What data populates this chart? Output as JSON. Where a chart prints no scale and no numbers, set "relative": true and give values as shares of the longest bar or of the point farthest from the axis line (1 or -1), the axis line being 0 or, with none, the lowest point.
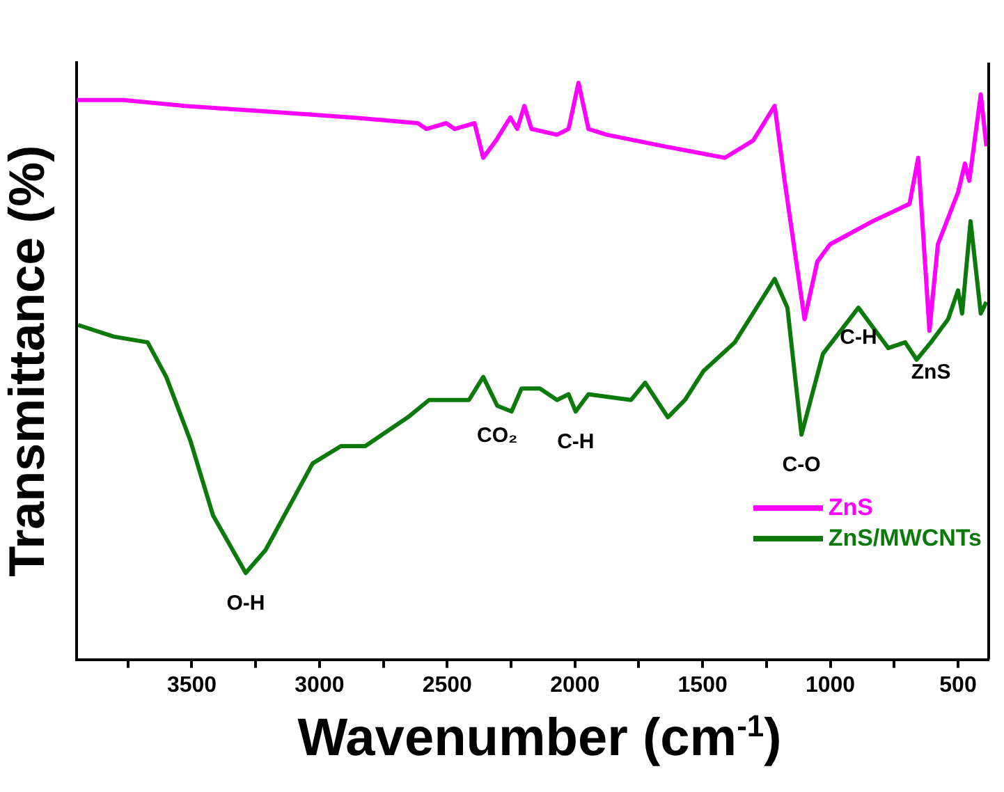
{
  "chart_data": {
    "type": "line",
    "relative": true,
    "xlabel": "Wavenumber (cm$^{-1}$)",
    "ylabel": "Transmittance (%)",
    "xlim": [
      3950,
      380
    ],
    "xticks": [
      {
        "value": 3750,
        "label": null
      },
      3500,
      {
        "value": 3250,
        "label": null
      },
      3000,
      {
        "value": 2750,
        "label": null
      },
      2500,
      {
        "value": 2250,
        "label": null
      },
      2000,
      {
        "value": 1750,
        "label": null
      },
      1500,
      {
        "value": 1250,
        "label": null
      },
      1000,
      {
        "value": 750,
        "label": null
      },
      500
    ],
    "tick_labels": "x",
    "grid": false,
    "legend": "bottom right",
    "marker": "none",
    "line_style": "solid",
    "series": [
      {
        "name": "ZnS",
        "color": "#ff00ff",
        "x": [
          3950,
          3767,
          3528,
          3194,
          2877,
          2615,
          2582,
          2504,
          2471,
          2393,
          2359,
          2309,
          2253,
          2226,
          2198,
          2170,
          2070,
          2025,
          1986,
          1947,
          1875,
          1652,
          1413,
          1302,
          1218,
          1179,
          1101,
          1051,
          1001,
          834,
          690,
          656,
          612,
          579,
          500,
          473,
          456,
          411,
          389
        ],
        "values": [
          0.97,
          0.97,
          0.96,
          0.95,
          0.94,
          0.93,
          0.92,
          0.93,
          0.92,
          0.93,
          0.87,
          0.9,
          0.94,
          0.92,
          0.96,
          0.92,
          0.91,
          0.92,
          1,
          0.92,
          0.91,
          0.89,
          0.87,
          0.9,
          0.96,
          0.83,
          0.59,
          0.69,
          0.72,
          0.76,
          0.79,
          0.87,
          0.57,
          0.72,
          0.81,
          0.86,
          0.83,
          0.98,
          0.89
        ]
      },
      {
        "name": "ZnS/MWCNTs",
        "color": "#0b7a0b",
        "x": [
          3945,
          3806,
          3673,
          3600,
          3506,
          3417,
          3289,
          3211,
          3027,
          2916,
          2821,
          2654,
          2571,
          2415,
          2359,
          2304,
          2248,
          2209,
          2137,
          2070,
          2025,
          1997,
          1947,
          1780,
          1725,
          1636,
          1569,
          1497,
          1374,
          1218,
          1168,
          1113,
          1029,
          890,
          773,
          707,
          662,
          606,
          539,
          500,
          484,
          451,
          411,
          389
        ],
        "values": [
          0.58,
          0.56,
          0.55,
          0.49,
          0.38,
          0.25,
          0.15,
          0.19,
          0.34,
          0.37,
          0.37,
          0.42,
          0.45,
          0.45,
          0.49,
          0.44,
          0.43,
          0.47,
          0.47,
          0.45,
          0.46,
          0.43,
          0.46,
          0.45,
          0.48,
          0.42,
          0.45,
          0.5,
          0.55,
          0.66,
          0.61,
          0.39,
          0.53,
          0.61,
          0.54,
          0.55,
          0.52,
          0.55,
          0.59,
          0.64,
          0.6,
          0.76,
          0.6,
          0.62
        ]
      }
    ],
    "annotations": [
      {
        "text": "O-H",
        "x": 3289,
        "y": 0.15
      },
      {
        "text": "CO₂",
        "x": 2304,
        "y": 0.44
      },
      {
        "text": "C-H",
        "x": 1997,
        "y": 0.43
      },
      {
        "text": "C-O",
        "x": 1113,
        "y": 0.39
      },
      {
        "text": "C-H",
        "x": 890,
        "y": 0.61
      },
      {
        "text": "ZnS",
        "x": 606,
        "y": 0.55
      }
    ]
  }
}
